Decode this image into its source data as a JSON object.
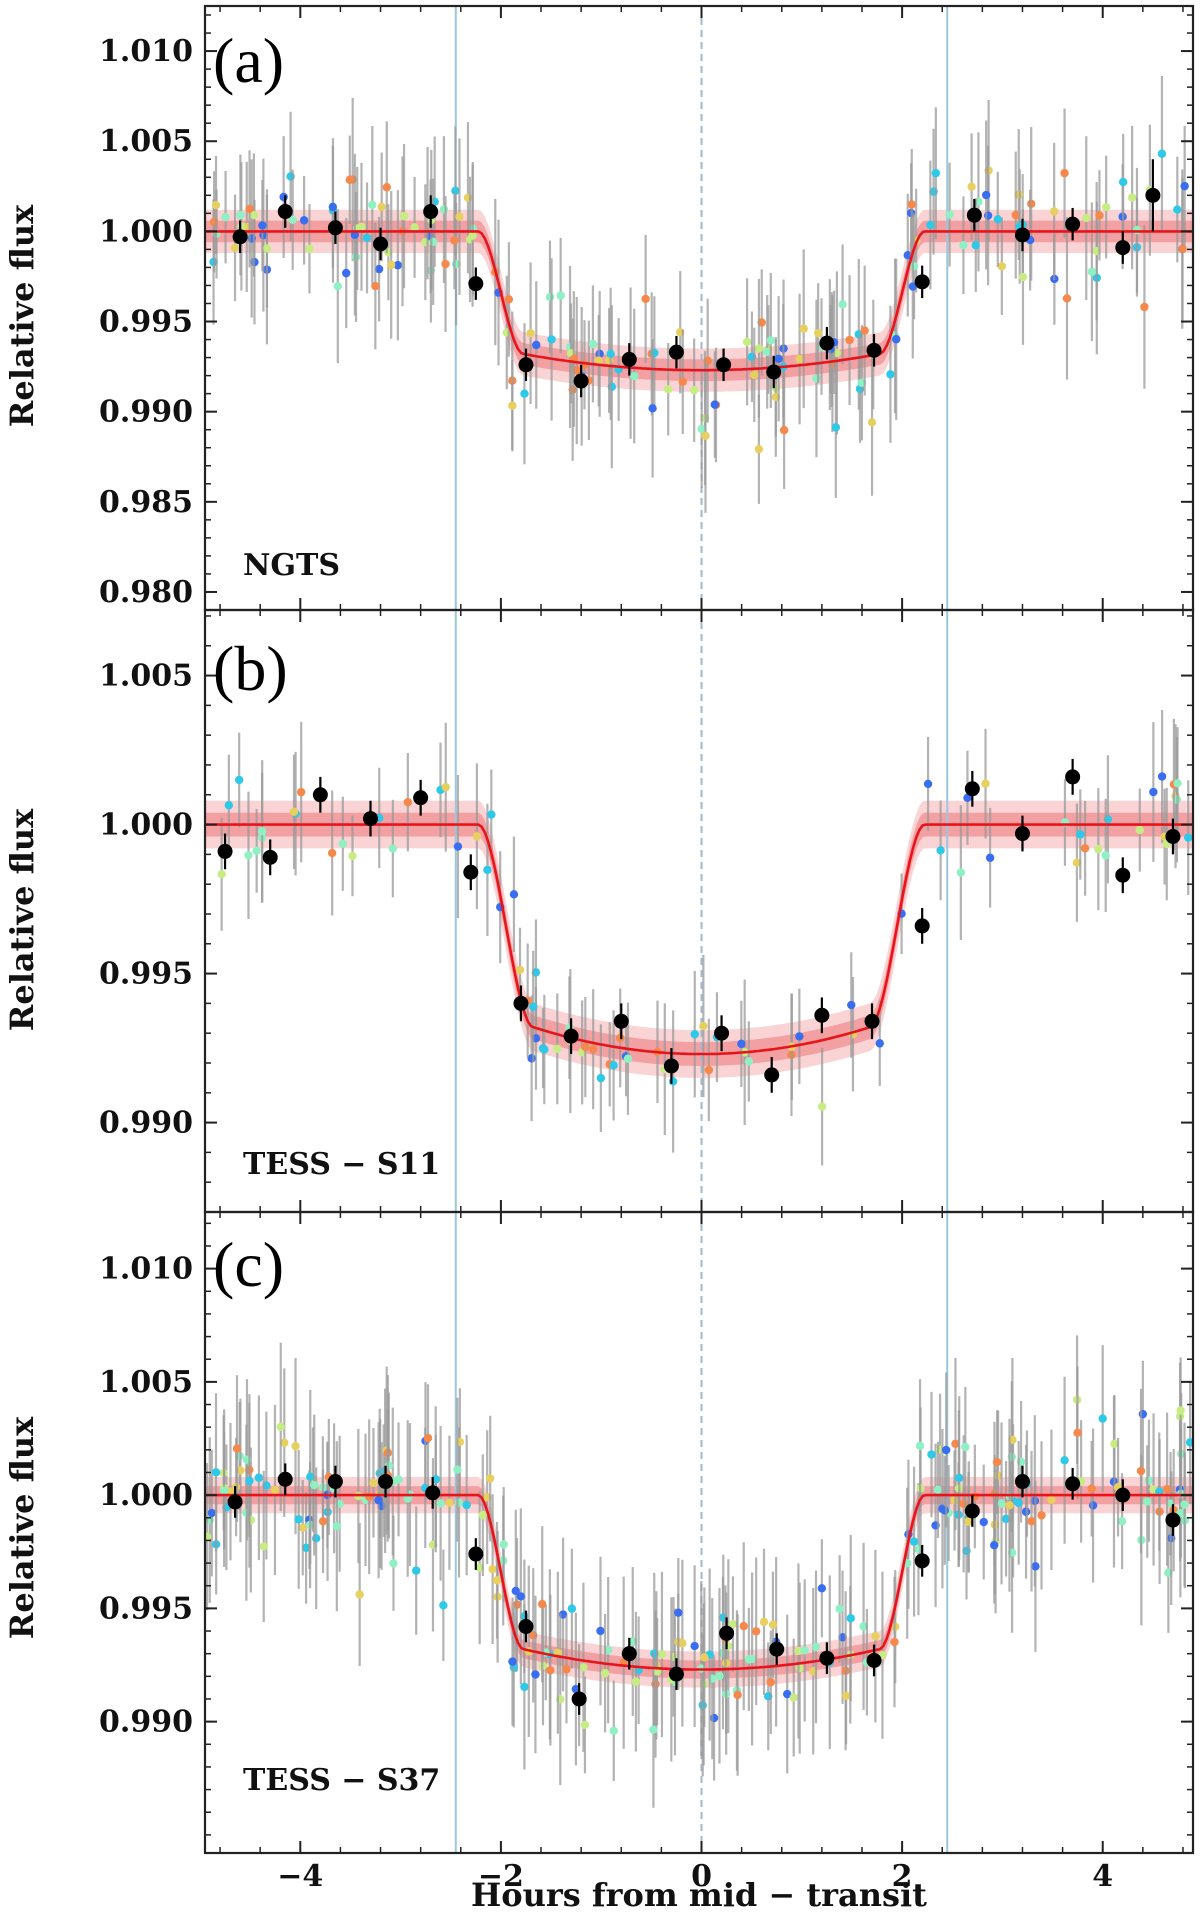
{
  "chart_data": {
    "type": "scatter",
    "shared": {
      "xlabel": "Hours from mid − transit",
      "xlim": [
        -4.95,
        4.9
      ],
      "xticks": [
        -4,
        -2,
        0,
        2,
        4
      ],
      "xtick_labels": [
        "−4",
        "−2",
        "0",
        "2",
        "4"
      ],
      "ylabel": "Relative flux",
      "transit_boundaries_hours": [
        -2.45,
        2.45
      ],
      "mid_transit_hours": 0,
      "colors": {
        "model": "#e8141c",
        "band_inner": "#f08a8e",
        "band_outer": "#f8c4c6",
        "binned": "#000000",
        "errorbar": "#9a9a9a",
        "boundary_line": "#9cc6dc",
        "mid_line": "#9fb8d6",
        "point_palette": [
          "#f5884a",
          "#3a6ef0",
          "#8ff0c4",
          "#c8ec84",
          "#2ec8e8",
          "#e8d060"
        ]
      }
    },
    "panels": [
      {
        "id": "a",
        "tag": "(a)",
        "instrument": "NGTS",
        "ylim": [
          0.979,
          1.0125
        ],
        "yticks": [
          0.98,
          0.985,
          0.99,
          0.995,
          1.0,
          1.005,
          1.01
        ],
        "ytick_labels": [
          "0.980",
          "0.985",
          "0.990",
          "0.995",
          "1.000",
          "1.005",
          "1.010"
        ],
        "model": {
          "depth": 0.0077,
          "t14": 4.45,
          "ingress": 0.45,
          "center_bump": 0.0009
        },
        "band_halfwidth": {
          "inner": 0.0006,
          "outer": 0.0012
        },
        "binned": [
          {
            "x": -4.6,
            "y": 0.9997,
            "e": 0.0009
          },
          {
            "x": -4.15,
            "y": 1.0011,
            "e": 0.0009
          },
          {
            "x": -3.65,
            "y": 1.0002,
            "e": 0.0009
          },
          {
            "x": -3.2,
            "y": 0.9993,
            "e": 0.0009
          },
          {
            "x": -2.7,
            "y": 1.0011,
            "e": 0.0009
          },
          {
            "x": -2.25,
            "y": 0.9971,
            "e": 0.0009
          },
          {
            "x": -1.75,
            "y": 0.9926,
            "e": 0.0009
          },
          {
            "x": -1.2,
            "y": 0.9917,
            "e": 0.0009
          },
          {
            "x": -0.72,
            "y": 0.9929,
            "e": 0.0009
          },
          {
            "x": -0.25,
            "y": 0.9933,
            "e": 0.0009
          },
          {
            "x": 0.22,
            "y": 0.9926,
            "e": 0.0009
          },
          {
            "x": 0.72,
            "y": 0.9922,
            "e": 0.0009
          },
          {
            "x": 1.25,
            "y": 0.9938,
            "e": 0.0009
          },
          {
            "x": 1.72,
            "y": 0.9934,
            "e": 0.0009
          },
          {
            "x": 2.2,
            "y": 0.9972,
            "e": 0.0009
          },
          {
            "x": 2.72,
            "y": 1.0009,
            "e": 0.0009
          },
          {
            "x": 3.2,
            "y": 0.9998,
            "e": 0.0009
          },
          {
            "x": 3.7,
            "y": 1.0004,
            "e": 0.0009
          },
          {
            "x": 4.2,
            "y": 0.9991,
            "e": 0.0009
          },
          {
            "x": 4.5,
            "y": 1.002,
            "e": 0.002
          }
        ],
        "unbinned": {
          "n": 190,
          "scatter": 0.0032,
          "errorbar": 0.0035,
          "seed": 11
        }
      },
      {
        "id": "b",
        "tag": "(b)",
        "instrument": "TESS − S11",
        "ylim": [
          0.987,
          1.0072
        ],
        "yticks": [
          0.99,
          0.995,
          1.0,
          1.005
        ],
        "ytick_labels": [
          "0.990",
          "0.995",
          "1.000",
          "1.005"
        ],
        "model": {
          "depth": 0.0077,
          "t14": 4.45,
          "ingress": 0.55,
          "center_bump": 0.0009
        },
        "band_halfwidth": {
          "inner": 0.0004,
          "outer": 0.0008
        },
        "binned": [
          {
            "x": -4.75,
            "y": 0.9991,
            "e": 0.0006
          },
          {
            "x": -4.3,
            "y": 0.9989,
            "e": 0.0006
          },
          {
            "x": -3.8,
            "y": 1.001,
            "e": 0.0006
          },
          {
            "x": -3.3,
            "y": 1.0002,
            "e": 0.0006
          },
          {
            "x": -2.8,
            "y": 1.0009,
            "e": 0.0006
          },
          {
            "x": -2.3,
            "y": 0.9984,
            "e": 0.0006
          },
          {
            "x": -1.8,
            "y": 0.994,
            "e": 0.0006
          },
          {
            "x": -1.3,
            "y": 0.9929,
            "e": 0.0006
          },
          {
            "x": -0.8,
            "y": 0.9934,
            "e": 0.0006
          },
          {
            "x": -0.3,
            "y": 0.9919,
            "e": 0.0006
          },
          {
            "x": 0.2,
            "y": 0.993,
            "e": 0.0006
          },
          {
            "x": 0.7,
            "y": 0.9916,
            "e": 0.0006
          },
          {
            "x": 1.2,
            "y": 0.9936,
            "e": 0.0006
          },
          {
            "x": 1.7,
            "y": 0.9934,
            "e": 0.0006
          },
          {
            "x": 2.2,
            "y": 0.9966,
            "e": 0.0006
          },
          {
            "x": 2.7,
            "y": 1.0012,
            "e": 0.0006
          },
          {
            "x": 3.2,
            "y": 0.9997,
            "e": 0.0006
          },
          {
            "x": 3.7,
            "y": 1.0016,
            "e": 0.0006
          },
          {
            "x": 4.2,
            "y": 0.9983,
            "e": 0.0006
          },
          {
            "x": 4.7,
            "y": 0.9996,
            "e": 0.0006
          }
        ],
        "unbinned": {
          "n": 85,
          "scatter": 0.0018,
          "errorbar": 0.0019,
          "seed": 23
        }
      },
      {
        "id": "c",
        "tag": "(c)",
        "instrument": "TESS − S37",
        "ylim": [
          0.9842,
          1.0125
        ],
        "yticks": [
          0.99,
          0.995,
          1.0,
          1.005,
          1.01
        ],
        "ytick_labels": [
          "0.990",
          "0.995",
          "1.000",
          "1.005",
          "1.010"
        ],
        "model": {
          "depth": 0.0077,
          "t14": 4.45,
          "ingress": 0.45,
          "center_bump": 0.0009
        },
        "band_halfwidth": {
          "inner": 0.0004,
          "outer": 0.0008
        },
        "binned": [
          {
            "x": -4.65,
            "y": 0.9997,
            "e": 0.0007
          },
          {
            "x": -4.15,
            "y": 1.0007,
            "e": 0.0007
          },
          {
            "x": -3.65,
            "y": 1.0006,
            "e": 0.0007
          },
          {
            "x": -3.15,
            "y": 1.0006,
            "e": 0.0007
          },
          {
            "x": -2.68,
            "y": 1.0001,
            "e": 0.0007
          },
          {
            "x": -2.25,
            "y": 0.9974,
            "e": 0.0007
          },
          {
            "x": -1.75,
            "y": 0.9942,
            "e": 0.0007
          },
          {
            "x": -1.22,
            "y": 0.991,
            "e": 0.0007
          },
          {
            "x": -0.72,
            "y": 0.993,
            "e": 0.0007
          },
          {
            "x": -0.25,
            "y": 0.9921,
            "e": 0.0007
          },
          {
            "x": 0.25,
            "y": 0.9939,
            "e": 0.0007
          },
          {
            "x": 0.75,
            "y": 0.9932,
            "e": 0.0007
          },
          {
            "x": 1.25,
            "y": 0.9928,
            "e": 0.0007
          },
          {
            "x": 1.72,
            "y": 0.9927,
            "e": 0.0007
          },
          {
            "x": 2.2,
            "y": 0.9971,
            "e": 0.0007
          },
          {
            "x": 2.7,
            "y": 0.9993,
            "e": 0.0007
          },
          {
            "x": 3.2,
            "y": 1.0006,
            "e": 0.0007
          },
          {
            "x": 3.7,
            "y": 1.0005,
            "e": 0.0007
          },
          {
            "x": 4.2,
            "y": 1.0,
            "e": 0.0007
          },
          {
            "x": 4.7,
            "y": 0.9989,
            "e": 0.0007
          }
        ],
        "unbinned": {
          "n": 260,
          "scatter": 0.0028,
          "errorbar": 0.003,
          "seed": 37
        }
      }
    ]
  }
}
